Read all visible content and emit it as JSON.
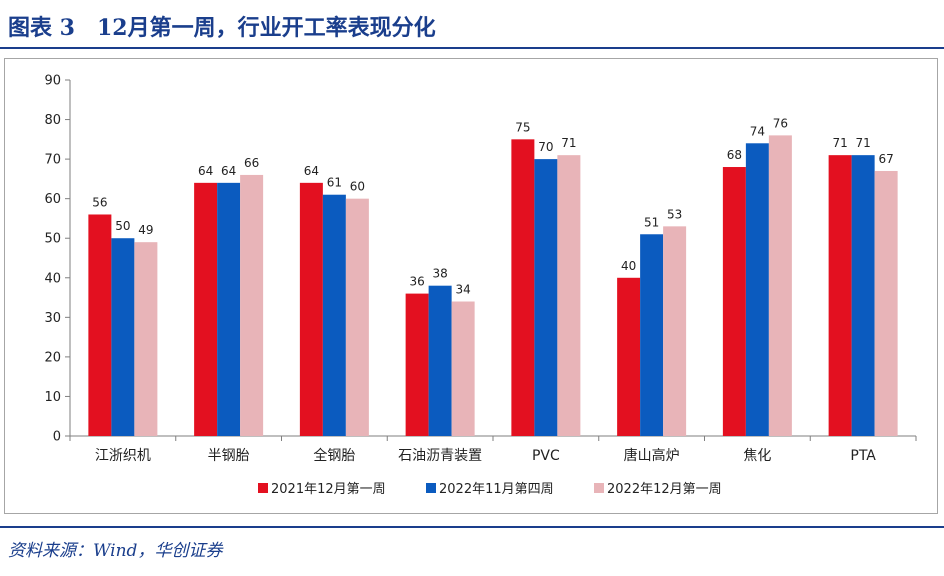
{
  "header": {
    "title": "图表 3　12月第一周，行业开工率表现分化"
  },
  "footer": {
    "source": "资料来源：Wind，华创证券"
  },
  "chart_data": {
    "type": "bar",
    "categories": [
      "江浙织机",
      "半钢胎",
      "全钢胎",
      "石油沥青装置",
      "PVC",
      "唐山高炉",
      "焦化",
      "PTA"
    ],
    "series": [
      {
        "name": "2021年12月第一周",
        "color": "#e31020",
        "values": [
          56,
          64,
          64,
          36,
          75,
          40,
          68,
          71
        ]
      },
      {
        "name": "2022年11月第四周",
        "color": "#0b5bbf",
        "values": [
          50,
          64,
          61,
          38,
          70,
          51,
          74,
          71
        ]
      },
      {
        "name": "2022年12月第一周",
        "color": "#e8b4b8",
        "values": [
          49,
          66,
          60,
          34,
          71,
          53,
          76,
          67
        ]
      }
    ],
    "ylim": [
      0,
      90
    ],
    "yticks": [
      0,
      10,
      20,
      30,
      40,
      50,
      60,
      70,
      80,
      90
    ],
    "grid": false,
    "legend": "bottom",
    "data_labels": true
  }
}
